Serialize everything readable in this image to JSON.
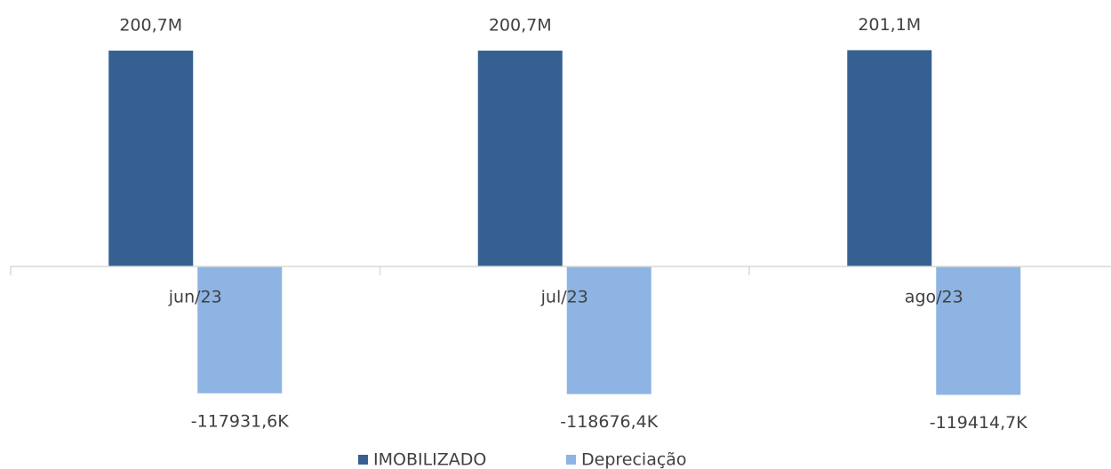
{
  "chart_data": {
    "type": "bar",
    "categories": [
      "jun/23",
      "jul/23",
      "ago/23"
    ],
    "series": [
      {
        "name": "IMOBILIZADO",
        "color": "#366092",
        "values": [
          200700000,
          200700000,
          201100000
        ],
        "value_labels": [
          "200,7M",
          "200,7M",
          "201,1M"
        ]
      },
      {
        "name": "Depreciação",
        "color": "#8eb4e3",
        "values": [
          -117931600,
          -118676400,
          -119414700
        ],
        "value_labels": [
          "-117931,6K",
          "-118676,4K",
          "-119414,7K"
        ]
      }
    ],
    "ylim": [
      -180000000,
      240000000
    ]
  }
}
